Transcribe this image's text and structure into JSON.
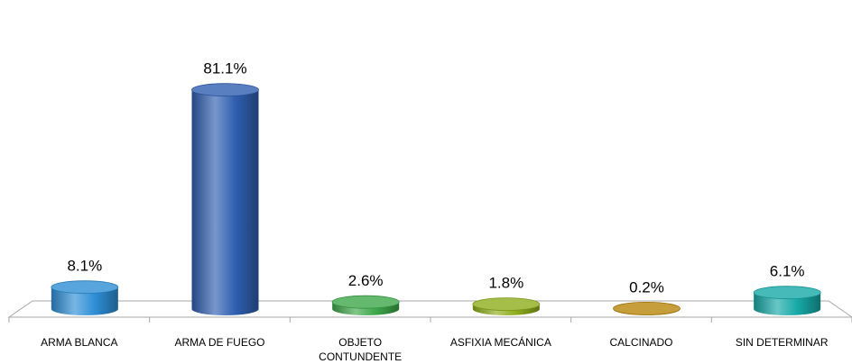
{
  "chart_data": {
    "type": "bar",
    "categories": [
      "ARMA BLANCA",
      "ARMA DE FUEGO",
      "OBJETO CONTUNDENTE",
      "ASFIXIA MECÁNICA",
      "CALCINADO",
      "SIN DETERMINAR"
    ],
    "category_lines": [
      [
        "ARMA BLANCA"
      ],
      [
        "ARMA DE FUEGO"
      ],
      [
        "OBJETO",
        "CONTUNDENTE"
      ],
      [
        "ASFIXIA MECÁNICA"
      ],
      [
        "CALCINADO"
      ],
      [
        "SIN DETERMINAR"
      ]
    ],
    "values": [
      8.1,
      81.1,
      2.6,
      1.8,
      0.2,
      6.1
    ],
    "data_labels": [
      "8.1%",
      "81.1%",
      "2.6%",
      "1.8%",
      "0.2%",
      "6.1%"
    ],
    "colors": [
      "#2e8fd6",
      "#2f5fb0",
      "#3ea84a",
      "#8fae1c",
      "#b8860b",
      "#17a9a7"
    ],
    "ylim": [
      0,
      100
    ],
    "grid": false,
    "legend": "none"
  }
}
